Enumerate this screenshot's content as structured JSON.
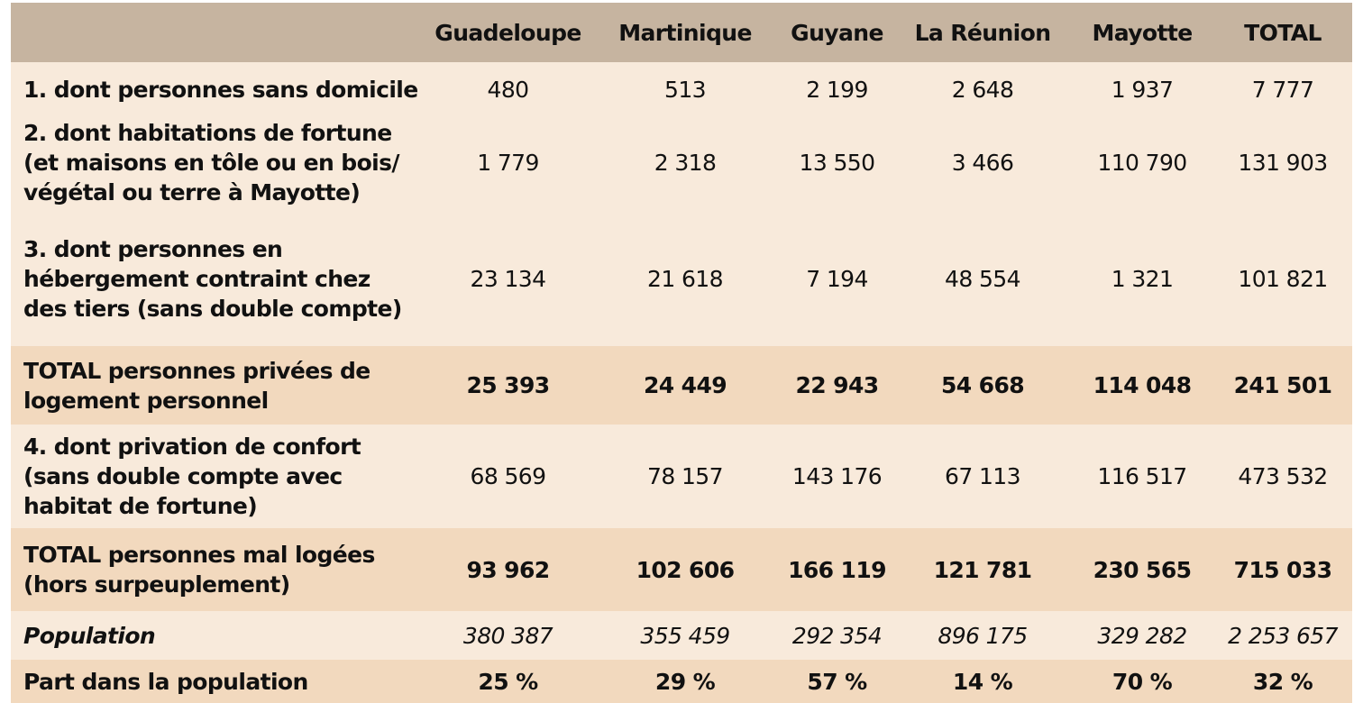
{
  "table": {
    "columns": [
      "",
      "Guadeloupe",
      "Martinique",
      "Guyane",
      "La Réunion",
      "Mayotte",
      "TOTAL"
    ],
    "rows": [
      {
        "label_lines": [
          "1. dont personnes sans domicile"
        ],
        "values": [
          "480",
          "513",
          "2 199",
          "2 648",
          "1 937",
          "7 777"
        ]
      },
      {
        "label_lines": [
          "2. dont habitations de fortune",
          "(et maisons en tôle ou en bois/",
          "végétal ou terre à Mayotte)"
        ],
        "values": [
          "1 779",
          "2 318",
          "13 550",
          "3 466",
          "110 790",
          "131 903"
        ]
      },
      {
        "label_lines": [
          "3. dont personnes en",
          "hébergement contraint chez",
          "des tiers (sans double compte)"
        ],
        "values": [
          "23 134",
          "21 618",
          "7 194",
          "48 554",
          "1 321",
          "101 821"
        ]
      },
      {
        "label_lines": [
          "TOTAL personnes privées de",
          "logement personnel"
        ],
        "values": [
          "25 393",
          "24 449",
          "22 943",
          "54 668",
          "114 048",
          "241 501"
        ]
      },
      {
        "label_lines": [
          "4. dont privation de confort",
          "(sans double compte avec",
          "habitat de fortune)"
        ],
        "values": [
          "68 569",
          "78 157",
          "143 176",
          "67 113",
          "116 517",
          "473 532"
        ]
      },
      {
        "label_lines": [
          "TOTAL personnes mal logées",
          "(hors surpeuplement)"
        ],
        "values": [
          "93 962",
          "102 606",
          "166 119",
          "121 781",
          "230 565",
          "715 033"
        ]
      },
      {
        "label_lines": [
          "Population"
        ],
        "values": [
          "380 387",
          "355 459",
          "292 354",
          "896 175",
          "329 282",
          "2 253 657"
        ]
      },
      {
        "label_lines": [
          "Part dans la population"
        ],
        "values": [
          "25 %",
          "29 %",
          "57 %",
          "14 %",
          "70 %",
          "32 %"
        ]
      }
    ]
  },
  "colors": {
    "header_bg": "#c6b4a0",
    "row_light_bg": "#f8eadb",
    "row_total_bg": "#f2d9be"
  }
}
